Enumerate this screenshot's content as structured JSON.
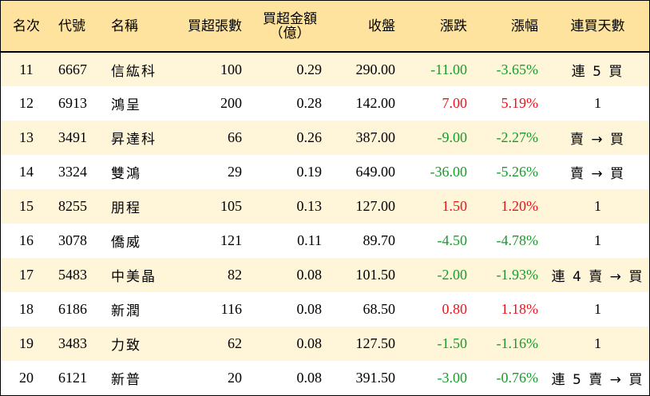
{
  "headers": {
    "rank": "名次",
    "code": "代號",
    "name": "名稱",
    "net_buy_lots": "買超張數",
    "net_buy_amount_line1": "買超金額",
    "net_buy_amount_line2": "（億）",
    "close": "收盤",
    "change": "漲跌",
    "change_pct": "漲幅",
    "consecutive_days": "連買天數"
  },
  "rows": [
    {
      "rank": "11",
      "code": "6667",
      "name": "信紘科",
      "lots": "100",
      "amount": "0.29",
      "close": "290.00",
      "change": "-11.00",
      "pct": "-3.65%",
      "streak": "連 5 買",
      "trend": "down"
    },
    {
      "rank": "12",
      "code": "6913",
      "name": "鴻呈",
      "lots": "200",
      "amount": "0.28",
      "close": "142.00",
      "change": "7.00",
      "pct": "5.19%",
      "streak": "1",
      "trend": "up"
    },
    {
      "rank": "13",
      "code": "3491",
      "name": "昇達科",
      "lots": "66",
      "amount": "0.26",
      "close": "387.00",
      "change": "-9.00",
      "pct": "-2.27%",
      "streak": "賣 → 買",
      "trend": "down"
    },
    {
      "rank": "14",
      "code": "3324",
      "name": "雙鴻",
      "lots": "29",
      "amount": "0.19",
      "close": "649.00",
      "change": "-36.00",
      "pct": "-5.26%",
      "streak": "賣 → 買",
      "trend": "down"
    },
    {
      "rank": "15",
      "code": "8255",
      "name": "朋程",
      "lots": "105",
      "amount": "0.13",
      "close": "127.00",
      "change": "1.50",
      "pct": "1.20%",
      "streak": "1",
      "trend": "up"
    },
    {
      "rank": "16",
      "code": "3078",
      "name": "僑威",
      "lots": "121",
      "amount": "0.11",
      "close": "89.70",
      "change": "-4.50",
      "pct": "-4.78%",
      "streak": "1",
      "trend": "down"
    },
    {
      "rank": "17",
      "code": "5483",
      "name": "中美晶",
      "lots": "82",
      "amount": "0.08",
      "close": "101.50",
      "change": "-2.00",
      "pct": "-1.93%",
      "streak": "連 4 賣 → 買",
      "trend": "down"
    },
    {
      "rank": "18",
      "code": "6186",
      "name": "新潤",
      "lots": "116",
      "amount": "0.08",
      "close": "68.50",
      "change": "0.80",
      "pct": "1.18%",
      "streak": "1",
      "trend": "up"
    },
    {
      "rank": "19",
      "code": "3483",
      "name": "力致",
      "lots": "62",
      "amount": "0.08",
      "close": "127.50",
      "change": "-1.50",
      "pct": "-1.16%",
      "streak": "1",
      "trend": "down"
    },
    {
      "rank": "20",
      "code": "6121",
      "name": "新普",
      "lots": "20",
      "amount": "0.08",
      "close": "391.50",
      "change": "-3.00",
      "pct": "-0.76%",
      "streak": "連 5 賣 → 買",
      "trend": "down"
    }
  ],
  "colors": {
    "header_bg": "#fde39e",
    "odd_row_bg": "#fff5d9",
    "even_row_bg": "#ffffff",
    "up": "#e8151c",
    "down": "#1a9a2c"
  }
}
